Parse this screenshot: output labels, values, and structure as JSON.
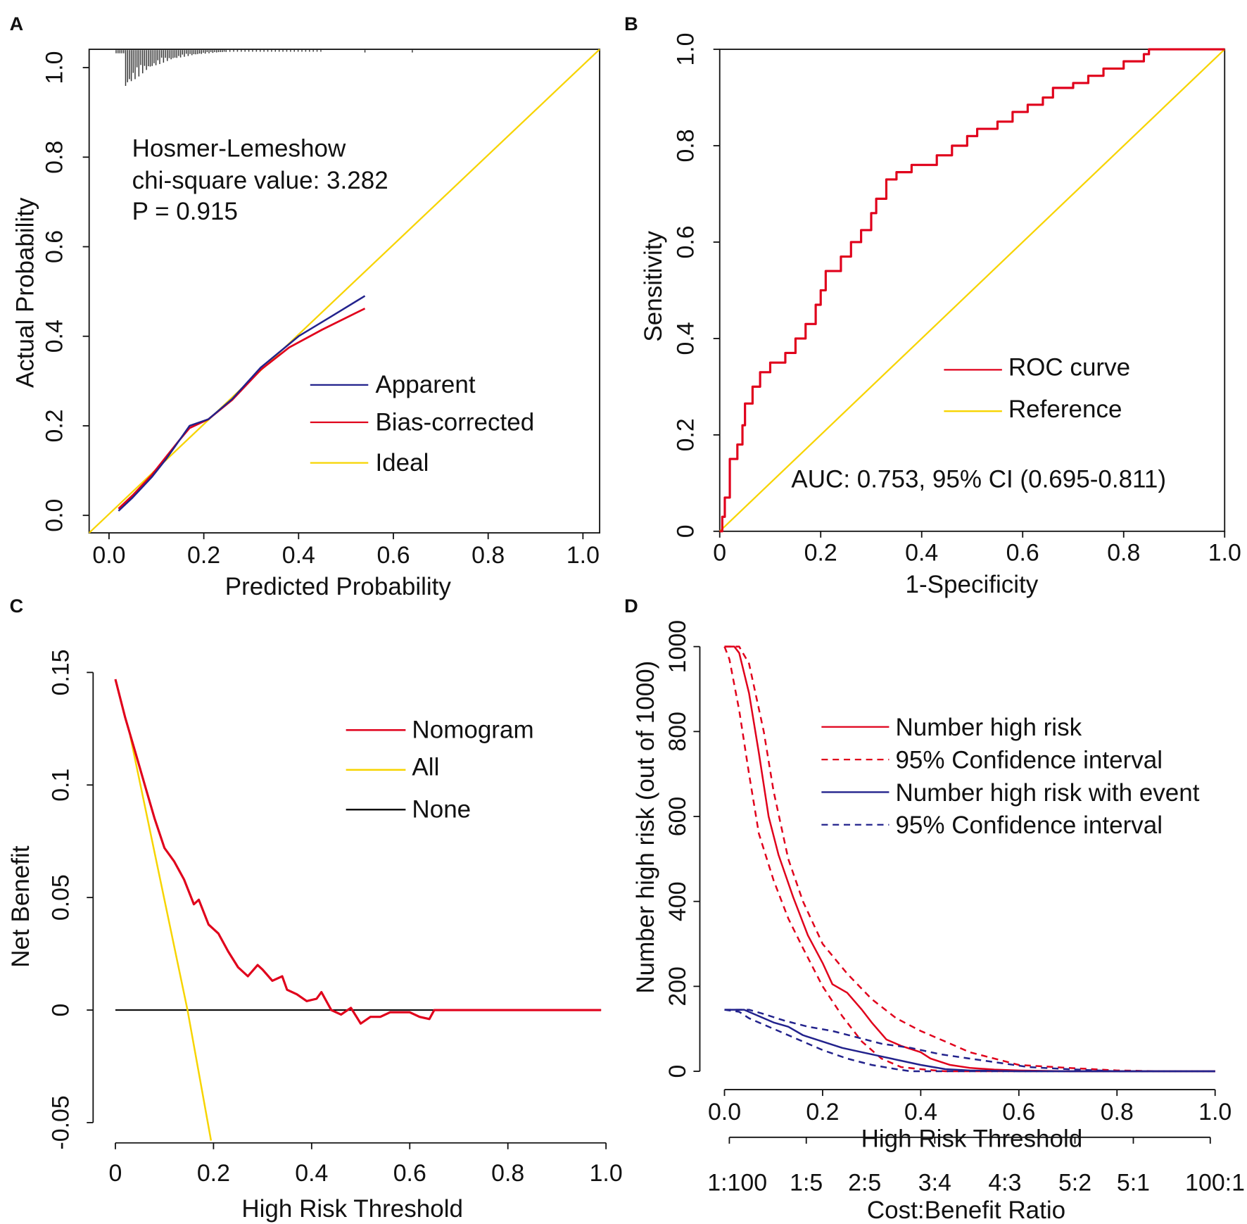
{
  "colors": {
    "red": "#e0001b",
    "yellow": "#f7d400",
    "blue": "#22228c",
    "black": "#111111",
    "rug": "#333333"
  },
  "chart_data": [
    {
      "panel": "A",
      "type": "line",
      "title": "",
      "xlabel": "Predicted Probability",
      "ylabel": "Actual Probability",
      "xlim": [
        -0.04,
        1.03
      ],
      "ylim": [
        -0.04,
        1.04
      ],
      "xticks": [
        "0.0",
        "0.2",
        "0.4",
        "0.6",
        "0.8",
        "1.0"
      ],
      "yticks": [
        "0.0",
        "0.2",
        "0.4",
        "0.6",
        "0.8",
        "1.0"
      ],
      "annotation": [
        "Hosmer-Lemeshow",
        "chi-square value: 3.282",
        "P = 0.915"
      ],
      "legend": [
        "Apparent",
        "Bias-corrected",
        "Ideal"
      ],
      "legend_position": "bottom-right",
      "series": [
        {
          "name": "Apparent",
          "color": "blue",
          "x": [
            0.02,
            0.05,
            0.09,
            0.12,
            0.15,
            0.17,
            0.21,
            0.26,
            0.32,
            0.4,
            0.47,
            0.54
          ],
          "y": [
            0.01,
            0.04,
            0.085,
            0.125,
            0.17,
            0.2,
            0.215,
            0.26,
            0.33,
            0.4,
            0.445,
            0.49
          ]
        },
        {
          "name": "Bias-corrected",
          "color": "red",
          "x": [
            0.02,
            0.05,
            0.09,
            0.12,
            0.15,
            0.17,
            0.21,
            0.26,
            0.32,
            0.38,
            0.45,
            0.54
          ],
          "y": [
            0.015,
            0.045,
            0.09,
            0.13,
            0.17,
            0.195,
            0.215,
            0.258,
            0.325,
            0.375,
            0.415,
            0.462
          ]
        },
        {
          "name": "Ideal",
          "color": "yellow",
          "x": [
            -0.04,
            1.03
          ],
          "y": [
            -0.04,
            1.03
          ]
        }
      ],
      "rug": "distribution of predicted probabilities along top axis"
    },
    {
      "panel": "B",
      "type": "line",
      "xlabel": "1-Specificity",
      "ylabel": "Sensitivity",
      "xlim": [
        0,
        1
      ],
      "ylim": [
        0,
        1
      ],
      "xticks": [
        "0",
        "0.2",
        "0.4",
        "0.6",
        "0.8",
        "1.0"
      ],
      "yticks": [
        "0",
        "0.2",
        "0.4",
        "0.6",
        "0.8",
        "1.0"
      ],
      "legend": [
        "ROC curve",
        "Reference"
      ],
      "legend_position": "bottom-right",
      "auc_text": "AUC: 0.753, 95% CI (0.695-0.811)",
      "series": [
        {
          "name": "ROC curve",
          "color": "red",
          "step": true,
          "x": [
            0,
            0.005,
            0.01,
            0.02,
            0.035,
            0.045,
            0.05,
            0.065,
            0.08,
            0.1,
            0.13,
            0.15,
            0.17,
            0.19,
            0.2,
            0.21,
            0.24,
            0.26,
            0.28,
            0.3,
            0.31,
            0.33,
            0.35,
            0.38,
            0.43,
            0.46,
            0.49,
            0.51,
            0.55,
            0.58,
            0.61,
            0.64,
            0.66,
            0.7,
            0.73,
            0.76,
            0.8,
            0.84,
            0.85,
            1.0
          ],
          "y": [
            0,
            0.03,
            0.07,
            0.15,
            0.18,
            0.22,
            0.265,
            0.3,
            0.33,
            0.35,
            0.37,
            0.4,
            0.43,
            0.47,
            0.5,
            0.54,
            0.57,
            0.6,
            0.625,
            0.66,
            0.69,
            0.73,
            0.745,
            0.76,
            0.78,
            0.8,
            0.82,
            0.835,
            0.85,
            0.87,
            0.885,
            0.9,
            0.92,
            0.93,
            0.945,
            0.96,
            0.975,
            0.99,
            1.0,
            1.0
          ]
        },
        {
          "name": "Reference",
          "color": "yellow",
          "x": [
            0,
            1
          ],
          "y": [
            0,
            1
          ]
        }
      ]
    },
    {
      "panel": "C",
      "type": "line",
      "xlabel": "High Risk Threshold",
      "ylabel": "Net Benefit",
      "xlim": [
        0,
        1
      ],
      "ylim": [
        -0.05,
        0.15
      ],
      "xticks": [
        "0",
        "0.2",
        "0.4",
        "0.6",
        "0.8",
        "1.0"
      ],
      "yticks": [
        "-0.05",
        "0",
        "0.05",
        "0.1",
        "0.15"
      ],
      "legend": [
        "Nomogram",
        "All",
        "None"
      ],
      "legend_position": "top-right",
      "series": [
        {
          "name": "Nomogram",
          "color": "red",
          "x": [
            0,
            0.02,
            0.04,
            0.06,
            0.08,
            0.1,
            0.12,
            0.14,
            0.16,
            0.17,
            0.19,
            0.21,
            0.23,
            0.25,
            0.27,
            0.29,
            0.3,
            0.32,
            0.34,
            0.35,
            0.37,
            0.39,
            0.41,
            0.42,
            0.44,
            0.46,
            0.48,
            0.5,
            0.52,
            0.54,
            0.56,
            0.58,
            0.6,
            0.62,
            0.64,
            0.65,
            0.99
          ],
          "y": [
            0.147,
            0.13,
            0.115,
            0.1,
            0.085,
            0.072,
            0.066,
            0.058,
            0.047,
            0.049,
            0.038,
            0.034,
            0.026,
            0.019,
            0.015,
            0.02,
            0.018,
            0.013,
            0.015,
            0.009,
            0.007,
            0.004,
            0.005,
            0.008,
            0.0,
            -0.002,
            0.001,
            -0.006,
            -0.003,
            -0.003,
            -0.001,
            -0.001,
            -0.001,
            -0.003,
            -0.004,
            0,
            0
          ]
        },
        {
          "name": "All",
          "color": "yellow",
          "x": [
            0.03,
            0.147,
            0.195
          ],
          "y": [
            0.122,
            0,
            -0.058
          ]
        },
        {
          "name": "None",
          "color": "black",
          "x": [
            0,
            0.99
          ],
          "y": [
            0,
            0
          ]
        }
      ]
    },
    {
      "panel": "D",
      "type": "line",
      "xlabel": "High Risk Threshold",
      "ylabel": "Number high risk (out of 1000)",
      "x2label": "Cost:Benefit Ratio",
      "xlim": [
        0,
        1
      ],
      "ylim": [
        0,
        1000
      ],
      "xticks": [
        "0.0",
        "0.2",
        "0.4",
        "0.6",
        "0.8",
        "1.0"
      ],
      "yticks": [
        "0",
        "200",
        "400",
        "600",
        "800",
        "1000"
      ],
      "x2ticks": [
        {
          "label": "1:100",
          "at": 0.0099
        },
        {
          "label": "1:5",
          "at": 0.1667
        },
        {
          "label": "2:5",
          "at": 0.2857
        },
        {
          "label": "3:4",
          "at": 0.4286
        },
        {
          "label": "4:3",
          "at": 0.5714
        },
        {
          "label": "5:2",
          "at": 0.7143
        },
        {
          "label": "5:1",
          "at": 0.8333
        },
        {
          "label": "100:1",
          "at": 0.9901
        }
      ],
      "legend": [
        "Number high risk",
        "95% Confidence interval",
        "Number high risk with event",
        "95% Confidence interval"
      ],
      "legend_position": "top-right",
      "series": [
        {
          "name": "Number high risk",
          "color": "red",
          "dash": false,
          "x": [
            0,
            0.02,
            0.03,
            0.05,
            0.07,
            0.09,
            0.11,
            0.14,
            0.17,
            0.2,
            0.22,
            0.25,
            0.28,
            0.3,
            0.33,
            0.36,
            0.4,
            0.42,
            0.46,
            0.5,
            0.55,
            0.6,
            0.7,
            1.0
          ],
          "y": [
            1000,
            1000,
            985,
            890,
            750,
            600,
            510,
            410,
            320,
            255,
            205,
            185,
            145,
            115,
            75,
            60,
            45,
            30,
            15,
            8,
            4,
            2,
            0,
            0
          ]
        },
        {
          "name": "95% CI upper (risk)",
          "color": "red",
          "dash": true,
          "x": [
            0,
            0.03,
            0.05,
            0.08,
            0.1,
            0.13,
            0.16,
            0.2,
            0.25,
            0.3,
            0.35,
            0.4,
            0.45,
            0.5,
            0.55,
            0.6,
            0.7,
            0.8,
            0.9,
            1.0
          ],
          "y": [
            1000,
            1000,
            960,
            800,
            660,
            500,
            400,
            300,
            230,
            170,
            125,
            95,
            70,
            45,
            30,
            15,
            8,
            2,
            0,
            0
          ]
        },
        {
          "name": "95% CI lower (risk)",
          "color": "red",
          "dash": true,
          "x": [
            0,
            0.01,
            0.03,
            0.05,
            0.07,
            0.1,
            0.13,
            0.16,
            0.2,
            0.24,
            0.28,
            0.32,
            0.36,
            0.4,
            0.45,
            1.0
          ],
          "y": [
            1000,
            970,
            850,
            700,
            560,
            450,
            360,
            290,
            200,
            130,
            70,
            30,
            10,
            5,
            0,
            0
          ]
        },
        {
          "name": "Number high risk with event",
          "color": "blue",
          "dash": false,
          "x": [
            0,
            0.04,
            0.07,
            0.1,
            0.13,
            0.16,
            0.2,
            0.24,
            0.28,
            0.32,
            0.36,
            0.4,
            0.45,
            0.5,
            0.6,
            1.0
          ],
          "y": [
            145,
            145,
            130,
            115,
            105,
            85,
            70,
            55,
            45,
            35,
            25,
            15,
            5,
            2,
            0,
            0
          ]
        },
        {
          "name": "95% CI upper (event)",
          "color": "blue",
          "dash": true,
          "x": [
            0,
            0.05,
            0.08,
            0.12,
            0.17,
            0.22,
            0.27,
            0.32,
            0.38,
            0.44,
            0.5,
            0.56,
            0.62,
            0.7,
            0.8,
            1.0
          ],
          "y": [
            145,
            145,
            135,
            120,
            105,
            95,
            80,
            65,
            55,
            40,
            30,
            20,
            10,
            5,
            0,
            0
          ]
        },
        {
          "name": "95% CI lower (event)",
          "color": "blue",
          "dash": true,
          "x": [
            0,
            0.03,
            0.05,
            0.08,
            0.12,
            0.16,
            0.2,
            0.25,
            0.3,
            0.35,
            0.38,
            1.0
          ],
          "y": [
            145,
            140,
            125,
            110,
            90,
            70,
            50,
            30,
            15,
            5,
            0,
            0
          ]
        }
      ]
    }
  ],
  "panels": {
    "a": "A",
    "b": "B",
    "c": "C",
    "d": "D"
  }
}
